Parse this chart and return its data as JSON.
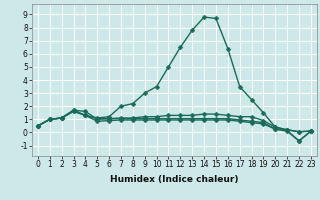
{
  "title": "",
  "xlabel": "Humidex (Indice chaleur)",
  "ylabel": "",
  "bg_color": "#cde8e8",
  "grid_color": "#ffffff",
  "line_color": "#1a6b5a",
  "marker": "D",
  "markersize": 2.5,
  "linewidth": 1.0,
  "xlim": [
    -0.5,
    23.5
  ],
  "ylim": [
    -1.8,
    9.8
  ],
  "yticks": [
    -1,
    0,
    1,
    2,
    3,
    4,
    5,
    6,
    7,
    8,
    9
  ],
  "xticks": [
    0,
    1,
    2,
    3,
    4,
    5,
    6,
    7,
    8,
    9,
    10,
    11,
    12,
    13,
    14,
    15,
    16,
    17,
    18,
    19,
    20,
    21,
    22,
    23
  ],
  "series": [
    [
      0.5,
      1.0,
      1.1,
      1.7,
      1.3,
      1.1,
      1.2,
      2.0,
      2.2,
      3.0,
      3.5,
      5.0,
      6.5,
      7.8,
      8.8,
      8.7,
      6.4,
      3.5,
      2.5,
      1.5,
      0.4,
      0.2,
      0.05,
      0.1
    ],
    [
      0.5,
      1.0,
      1.1,
      1.7,
      1.6,
      1.0,
      1.05,
      1.1,
      1.1,
      1.2,
      1.2,
      1.3,
      1.3,
      1.3,
      1.4,
      1.4,
      1.3,
      1.2,
      1.2,
      0.9,
      0.4,
      0.2,
      0.05,
      0.1
    ],
    [
      0.5,
      1.0,
      1.1,
      1.65,
      1.3,
      0.85,
      0.9,
      0.95,
      0.95,
      0.95,
      0.95,
      0.95,
      0.95,
      0.95,
      0.95,
      0.95,
      0.95,
      0.85,
      0.75,
      0.65,
      0.25,
      0.1,
      -0.65,
      0.1
    ],
    [
      0.5,
      1.0,
      1.1,
      1.6,
      1.3,
      1.05,
      1.05,
      1.05,
      1.05,
      1.05,
      1.05,
      1.05,
      1.05,
      1.05,
      1.05,
      1.05,
      1.05,
      0.95,
      0.85,
      0.75,
      0.25,
      0.15,
      -0.65,
      0.1
    ]
  ],
  "tick_fontsize": 5.5,
  "xlabel_fontsize": 6.5,
  "xlabel_fontweight": "bold"
}
